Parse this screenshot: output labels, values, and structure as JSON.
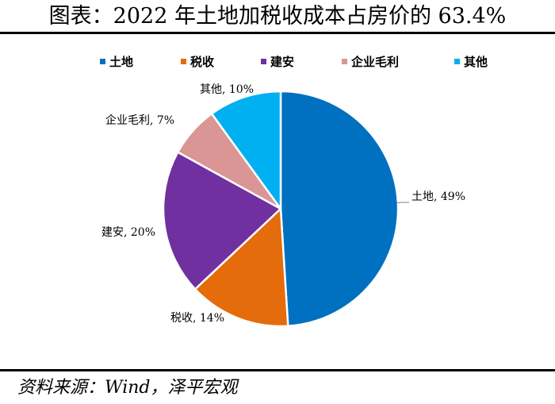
{
  "title": "图表：2022 年土地加税收成本占房价的 63.4%",
  "source": "资料来源：Wind，泽平宏观",
  "chart_data": {
    "type": "pie",
    "legend_position": "top",
    "series": [
      {
        "slices": [
          {
            "name": "土地",
            "value": 49,
            "label": "土地, 49%",
            "color": "#0070C0"
          },
          {
            "name": "税收",
            "value": 14,
            "label": "税收, 14%",
            "color": "#E46C0A"
          },
          {
            "name": "建安",
            "value": 20,
            "label": "建安, 20%",
            "color": "#7030A0"
          },
          {
            "name": "企业毛利",
            "value": 7,
            "label": "企业毛利, 7%",
            "color": "#D99694"
          },
          {
            "name": "其他",
            "value": 10,
            "label": "其他, 10%",
            "color": "#00B0F0"
          }
        ]
      }
    ]
  }
}
